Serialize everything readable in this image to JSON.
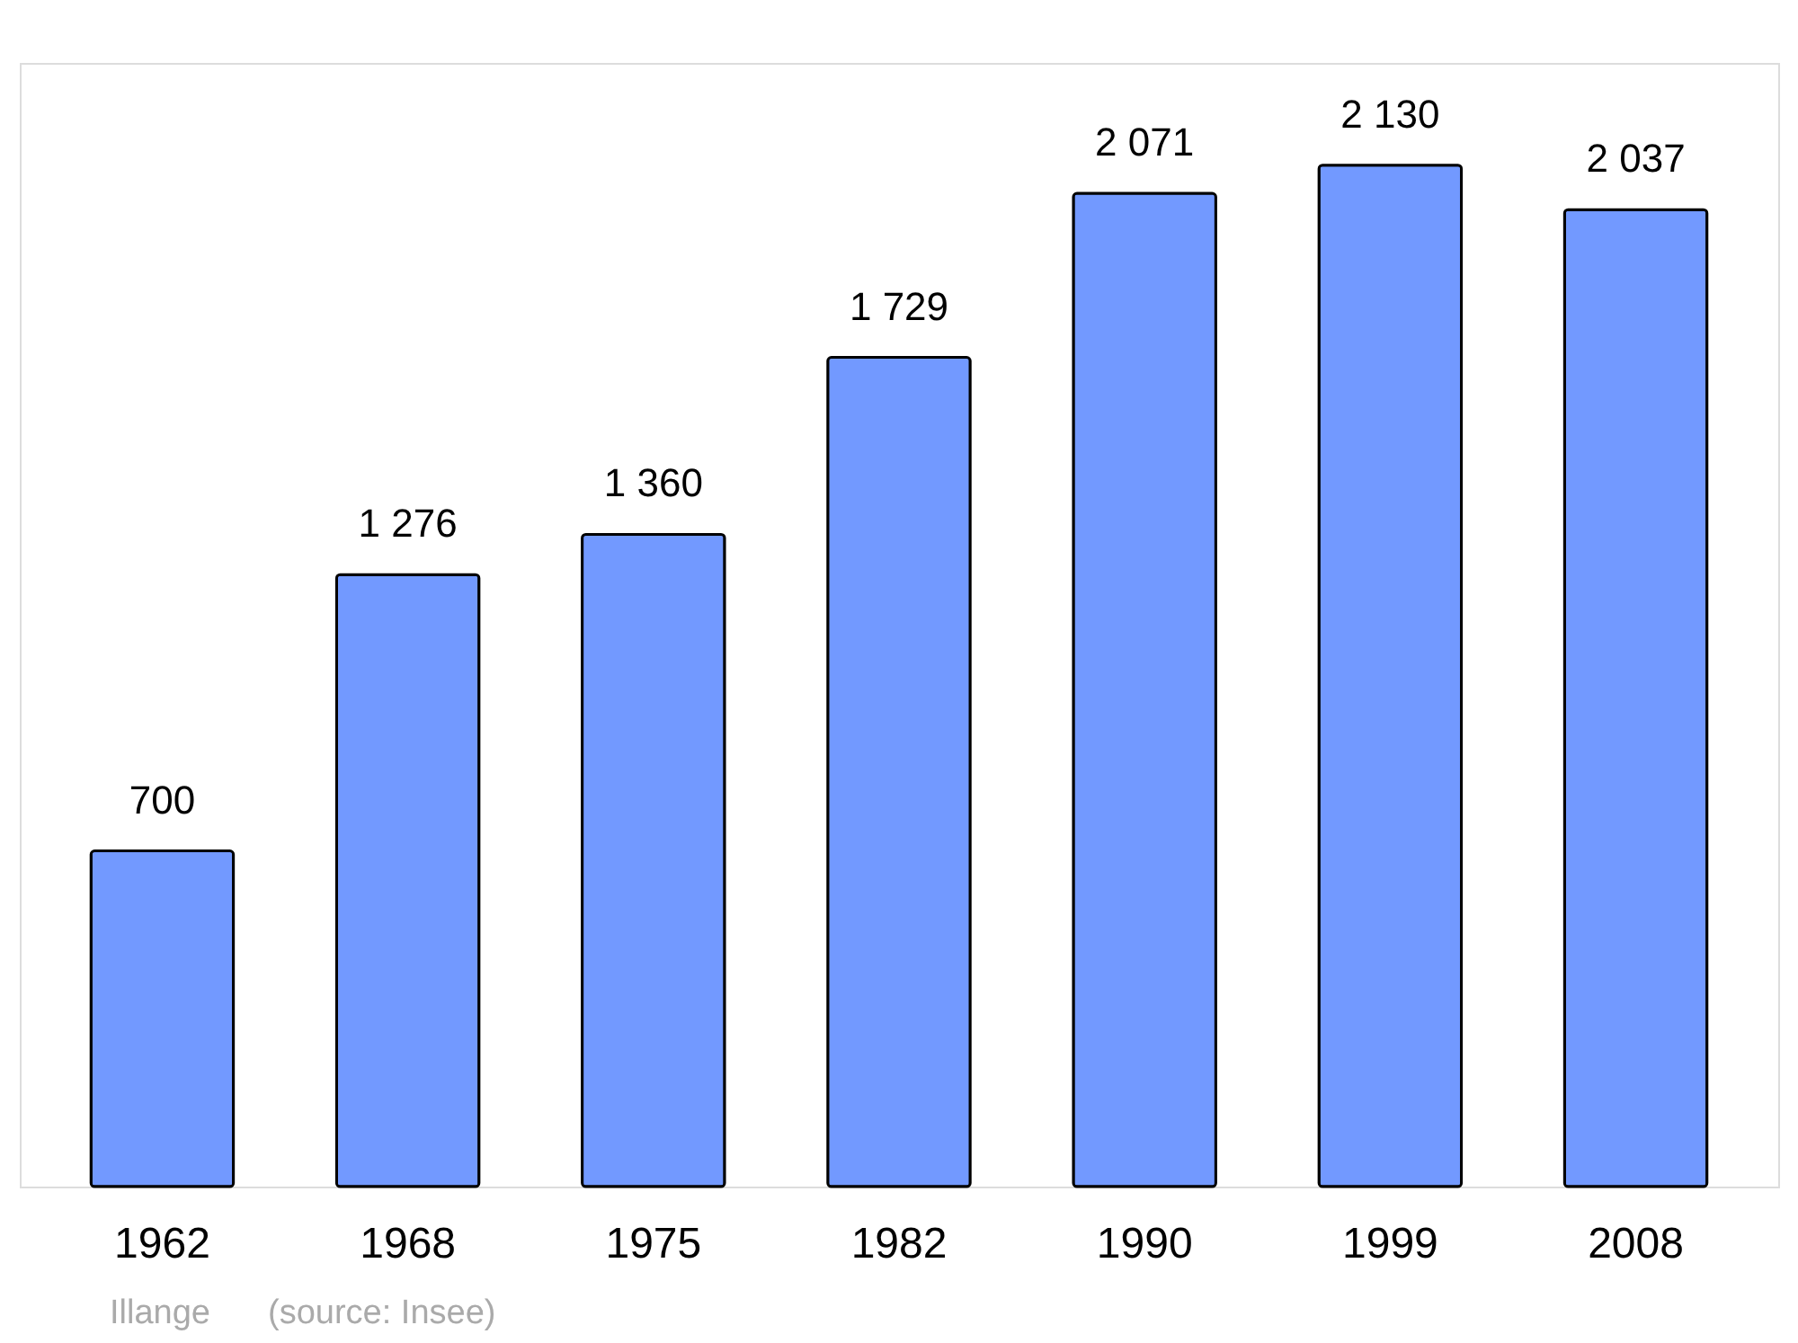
{
  "chart_data": {
    "type": "bar",
    "categories": [
      "1962",
      "1968",
      "1975",
      "1982",
      "1990",
      "1999",
      "2008"
    ],
    "values": [
      700,
      1276,
      1360,
      1729,
      2071,
      2130,
      2037
    ],
    "value_labels": [
      "700",
      "1 276",
      "1 360",
      "1 729",
      "2 071",
      "2 130",
      "2 037"
    ],
    "color": "#7299ff",
    "annotations": [
      "Illange",
      "(source: Insee)"
    ]
  }
}
